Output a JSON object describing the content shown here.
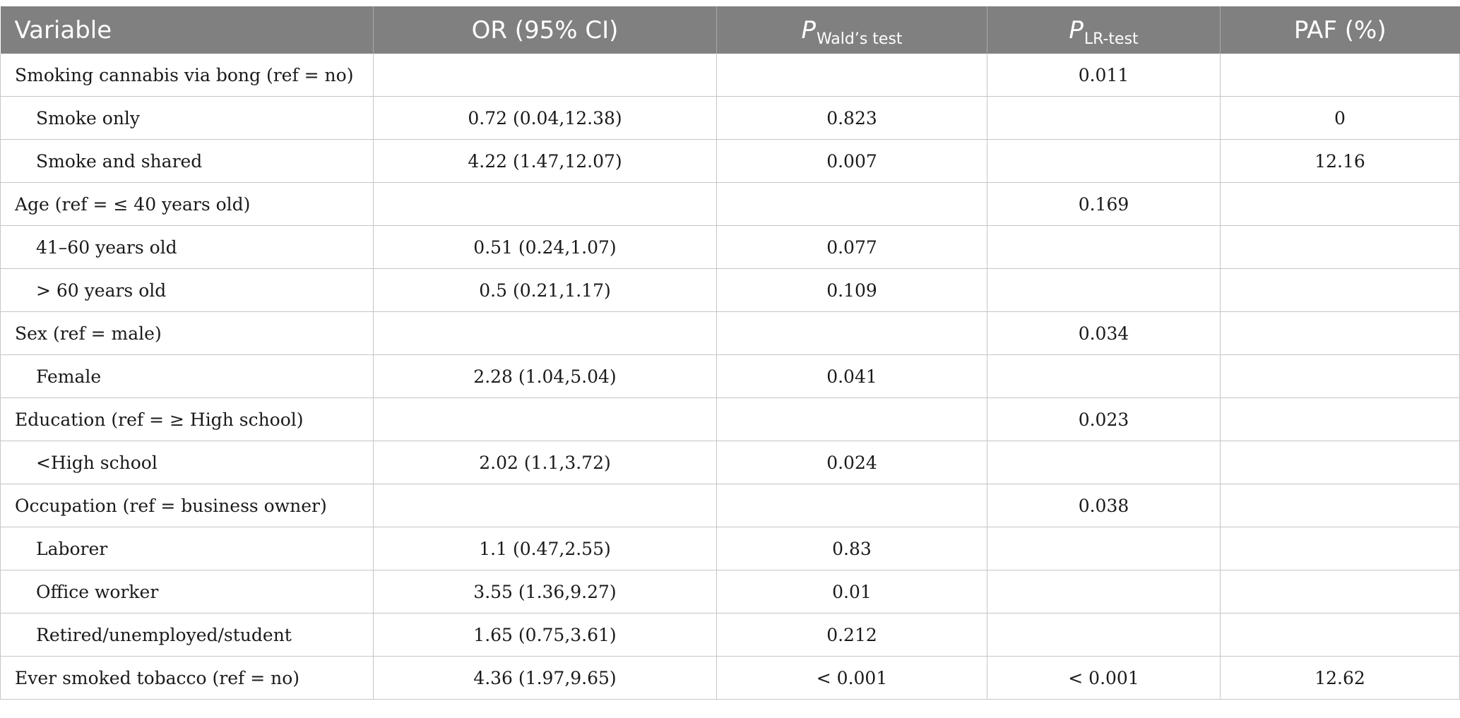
{
  "columns": {
    "variable": "Variable",
    "or_ci": "OR (95% CI)",
    "p_wald": {
      "symbol": "P",
      "sub": "Wald’s test"
    },
    "p_lr": {
      "symbol": "P",
      "sub": "LR-test"
    },
    "paf": "PAF (%)"
  },
  "rows": [
    {
      "label": "Smoking cannabis via bong (ref = no)",
      "indent": false,
      "or": "",
      "p_wald": "",
      "p_lr": "0.011",
      "paf": ""
    },
    {
      "label": "Smoke only",
      "indent": true,
      "or": "0.72 (0.04,12.38)",
      "p_wald": "0.823",
      "p_lr": "",
      "paf": "0"
    },
    {
      "label": "Smoke and shared",
      "indent": true,
      "or": "4.22 (1.47,12.07)",
      "p_wald": "0.007",
      "p_lr": "",
      "paf": "12.16"
    },
    {
      "label": "Age (ref = ≤ 40 years old)",
      "indent": false,
      "or": "",
      "p_wald": "",
      "p_lr": "0.169",
      "paf": ""
    },
    {
      "label": "41–60 years old",
      "indent": true,
      "or": "0.51 (0.24,1.07)",
      "p_wald": "0.077",
      "p_lr": "",
      "paf": ""
    },
    {
      "label": "> 60 years old",
      "indent": true,
      "or": "0.5 (0.21,1.17)",
      "p_wald": "0.109",
      "p_lr": "",
      "paf": ""
    },
    {
      "label": "Sex (ref = male)",
      "indent": false,
      "or": "",
      "p_wald": "",
      "p_lr": "0.034",
      "paf": ""
    },
    {
      "label": "Female",
      "indent": true,
      "or": "2.28 (1.04,5.04)",
      "p_wald": "0.041",
      "p_lr": "",
      "paf": ""
    },
    {
      "label": "Education (ref = ≥ High school)",
      "indent": false,
      "or": "",
      "p_wald": "",
      "p_lr": "0.023",
      "paf": ""
    },
    {
      "label": "<High school",
      "indent": true,
      "or": "2.02 (1.1,3.72)",
      "p_wald": "0.024",
      "p_lr": "",
      "paf": ""
    },
    {
      "label": "Occupation (ref = business owner)",
      "indent": false,
      "or": "",
      "p_wald": "",
      "p_lr": "0.038",
      "paf": ""
    },
    {
      "label": "Laborer",
      "indent": true,
      "or": "1.1 (0.47,2.55)",
      "p_wald": "0.83",
      "p_lr": "",
      "paf": ""
    },
    {
      "label": "Office worker",
      "indent": true,
      "or": "3.55 (1.36,9.27)",
      "p_wald": "0.01",
      "p_lr": "",
      "paf": ""
    },
    {
      "label": "Retired/unemployed/student",
      "indent": true,
      "or": "1.65 (0.75,3.61)",
      "p_wald": "0.212",
      "p_lr": "",
      "paf": ""
    },
    {
      "label": "Ever smoked tobacco (ref = no)",
      "indent": false,
      "or": "4.36 (1.97,9.65)",
      "p_wald": "< 0.001",
      "p_lr": "< 0.001",
      "paf": "12.62"
    }
  ]
}
